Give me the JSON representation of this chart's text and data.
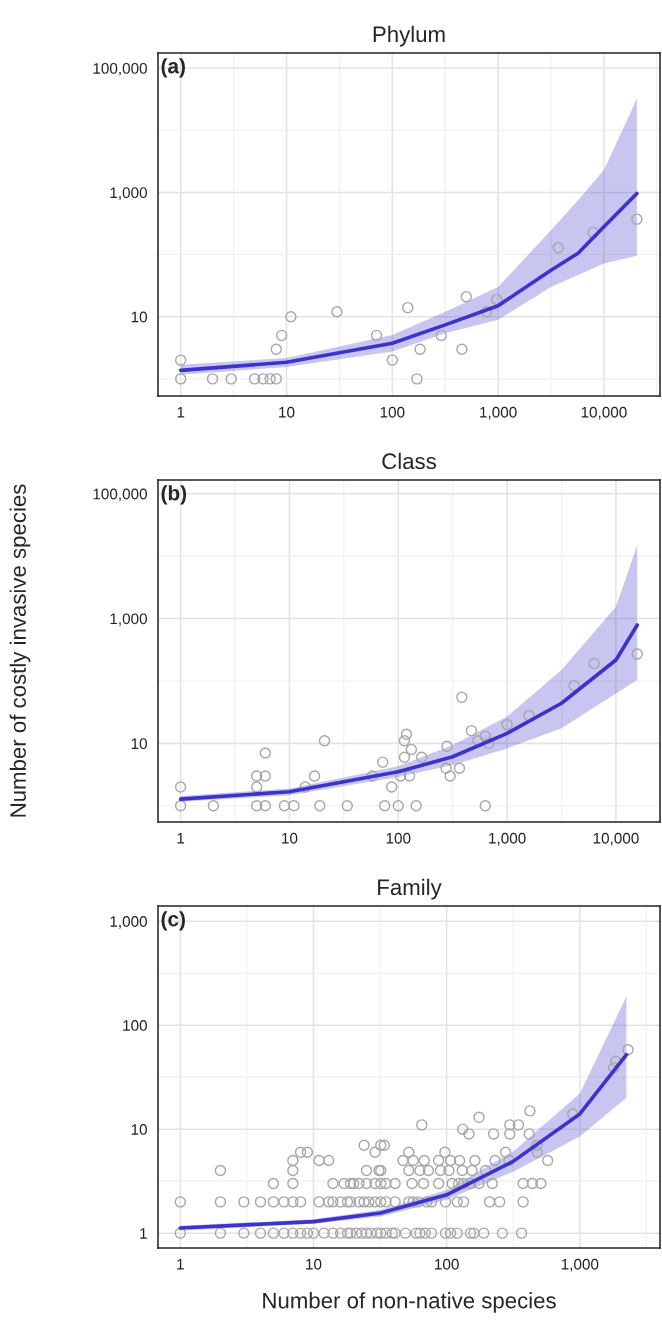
{
  "chart_data": [
    {
      "type": "scatter",
      "title": "Phylum",
      "annotations": [
        "(a)"
      ],
      "log": "xy",
      "grid": true,
      "legend": false,
      "xlim": [
        0.61,
        33900
      ],
      "ylim": [
        0.53,
        175000
      ],
      "xticks": [
        {
          "value": 1,
          "label": "1"
        },
        {
          "value": 10,
          "label": "10"
        },
        {
          "value": 100,
          "label": "100"
        },
        {
          "value": 1000,
          "label": "1,000"
        },
        {
          "value": 10000,
          "label": "10,000"
        }
      ],
      "yticks": [
        {
          "value": 10,
          "label": "10"
        },
        {
          "value": 1000,
          "label": "1,000"
        },
        {
          "value": 100000,
          "label": "100,000"
        }
      ],
      "series": [
        {
          "marker": "circle",
          "color": "#a6a6a6",
          "x": [
            1,
            2,
            3,
            5,
            6,
            7,
            8,
            171,
            1,
            8,
            9,
            11,
            30,
            71,
            100,
            140,
            183,
            290,
            455,
            500,
            780,
            970,
            3700,
            7900,
            20500
          ],
          "values": [
            1,
            1,
            1,
            1,
            1,
            1,
            1,
            1,
            2,
            3,
            5,
            10,
            12,
            5,
            2,
            14,
            3,
            5,
            3,
            21,
            12,
            19,
            129,
            227,
            372
          ]
        },
        {
          "type": "line",
          "color": "#3b33cc",
          "x": [
            1,
            10,
            100,
            316,
            1000,
            3160,
            5700,
            10000,
            20500
          ],
          "values": [
            1.37,
            1.85,
            3.75,
            7.4,
            15,
            56,
            105,
            280,
            960
          ],
          "lower": [
            1.17,
            1.55,
            2.76,
            5.4,
            8.9,
            30,
            47,
            72,
            96
          ],
          "upper": [
            1.69,
            2.16,
            5.1,
            12,
            30,
            247,
            750,
            2290,
            32000
          ]
        }
      ]
    },
    {
      "type": "scatter",
      "title": "Class",
      "annotations": [
        "(b)"
      ],
      "ylabel": "Number of costly invasive species",
      "log": "xy",
      "grid": true,
      "legend": false,
      "xlim": [
        0.62,
        25400
      ],
      "ylim": [
        0.55,
        166000
      ],
      "xticks": [
        {
          "value": 1,
          "label": "1"
        },
        {
          "value": 10,
          "label": "10"
        },
        {
          "value": 100,
          "label": "100"
        },
        {
          "value": 1000,
          "label": "1,000"
        },
        {
          "value": 10000,
          "label": "10,000"
        }
      ],
      "yticks": [
        {
          "value": 10,
          "label": "10"
        },
        {
          "value": 1000,
          "label": "1,000"
        },
        {
          "value": 100000,
          "label": "100,000"
        }
      ],
      "series": [
        {
          "marker": "circle",
          "color": "#a6a6a6",
          "x": [
            1,
            2,
            5,
            6,
            9,
            11,
            19,
            34,
            75,
            100,
            146,
            630,
            1,
            5,
            5,
            6,
            6,
            14,
            17,
            21,
            58,
            72,
            87,
            105,
            127,
            114,
            114,
            119,
            132,
            164,
            280,
            275,
            300,
            365,
            384,
            470,
            540,
            630,
            675,
            1000,
            1590,
            4130,
            6300,
            15700
          ],
          "values": [
            1,
            1,
            1,
            1,
            1,
            1,
            1,
            1,
            1,
            1,
            1,
            1,
            2,
            2,
            3,
            3,
            7,
            2,
            3,
            11,
            3,
            5,
            2,
            3,
            3,
            6,
            11,
            14,
            8,
            6,
            9,
            4,
            3,
            4,
            55,
            16,
            11,
            13,
            10,
            20,
            28,
            84,
            190,
            270
          ]
        },
        {
          "type": "line",
          "color": "#3b33cc",
          "x": [
            1,
            10,
            100,
            316,
            1000,
            3160,
            10000,
            15700
          ],
          "values": [
            1.28,
            1.68,
            3.5,
            6.1,
            14.5,
            44,
            217,
            790
          ],
          "lower": [
            1.16,
            1.48,
            2.9,
            4.5,
            8.3,
            17.5,
            63,
            104
          ],
          "upper": [
            1.43,
            1.9,
            4.3,
            9.4,
            27,
            150,
            1550,
            15000
          ]
        }
      ]
    },
    {
      "type": "scatter",
      "title": "Family",
      "annotations": [
        "(c)"
      ],
      "xlabel": "Number of non-native species",
      "log": "xy",
      "grid": true,
      "legend": false,
      "xlim": [
        0.68,
        4000
      ],
      "ylim": [
        0.72,
        1400
      ],
      "xticks": [
        {
          "value": 1,
          "label": "1"
        },
        {
          "value": 10,
          "label": "10"
        },
        {
          "value": 100,
          "label": "100"
        },
        {
          "value": 1000,
          "label": "1,000"
        }
      ],
      "yticks": [
        {
          "value": 1,
          "label": "1"
        },
        {
          "value": 10,
          "label": "10"
        },
        {
          "value": 100,
          "label": "100"
        },
        {
          "value": 1000,
          "label": "1,000"
        }
      ],
      "series": [
        {
          "marker": "circle",
          "color": "#a6a6a6",
          "x": [
            1,
            2,
            3,
            4,
            5,
            6,
            7,
            8,
            9,
            10,
            12,
            14,
            16,
            18,
            19,
            21,
            23,
            25,
            27,
            30,
            32,
            35,
            39,
            41,
            49,
            59,
            63,
            69,
            77,
            98,
            107,
            120,
            151,
            160,
            190,
            262,
            365,
            1,
            2,
            3,
            4,
            5,
            6,
            7,
            8,
            11,
            13,
            14,
            16,
            18,
            19,
            22,
            24,
            26,
            29,
            32,
            35,
            41,
            52,
            56,
            61,
            71,
            77,
            98,
            120,
            134,
            210,
            250,
            375,
            5,
            7,
            14,
            17,
            19,
            20,
            22,
            25,
            29,
            32,
            35,
            41,
            55,
            67,
            87,
            110,
            123,
            134,
            151,
            175,
            220,
            375,
            440,
            510,
            2,
            7,
            25,
            31,
            32,
            52,
            63,
            73,
            90,
            104,
            131,
            155,
            196,
            7,
            11,
            13,
            47,
            56,
            68,
            87,
            107,
            125,
            163,
            231,
            294,
            573,
            8,
            9,
            29,
            52,
            97,
            277,
            480,
            24,
            32,
            34,
            476,
            147,
            225,
            298,
            417,
            132,
            65,
            298,
            346,
            175,
            422,
            885,
            1800,
            1860,
            2300
          ],
          "values": [
            1,
            1,
            1,
            1,
            1,
            1,
            1,
            1,
            1,
            1,
            1,
            1,
            1,
            1,
            1,
            1,
            1,
            1,
            1,
            1,
            1,
            1,
            1,
            1,
            1,
            1,
            1,
            1,
            1,
            1,
            1,
            1,
            1,
            1,
            1,
            1,
            1,
            2,
            2,
            2,
            2,
            2,
            2,
            2,
            2,
            2,
            2,
            2,
            2,
            2,
            2,
            2,
            2,
            2,
            2,
            2,
            2,
            2,
            2,
            2,
            2,
            2,
            2,
            2,
            2,
            2,
            2,
            2,
            2,
            3,
            3,
            3,
            3,
            3,
            3,
            3,
            3,
            3,
            3,
            3,
            3,
            3,
            3,
            3,
            3,
            3,
            3,
            3,
            3,
            3,
            3,
            3,
            3,
            4,
            4,
            4,
            4,
            4,
            4,
            4,
            4,
            4,
            4,
            4,
            4,
            4,
            5,
            5,
            5,
            5,
            5,
            5,
            5,
            5,
            5,
            5,
            5,
            5,
            5,
            6,
            6,
            6,
            6,
            6,
            6,
            6,
            7,
            7,
            7,
            7,
            9,
            9,
            9,
            9,
            10,
            11,
            11,
            11,
            13,
            15,
            14,
            39,
            45,
            58
          ]
        },
        {
          "type": "line",
          "color": "#3b33cc",
          "x": [
            1,
            10,
            32,
            100,
            316,
            1000,
            2240
          ],
          "values": [
            1.12,
            1.29,
            1.56,
            2.34,
            4.9,
            14,
            52
          ],
          "lower": [
            1.06,
            1.23,
            1.45,
            2.09,
            3.9,
            8.5,
            20
          ],
          "upper": [
            1.18,
            1.36,
            1.68,
            2.6,
            6.1,
            22,
            189
          ]
        }
      ]
    }
  ]
}
